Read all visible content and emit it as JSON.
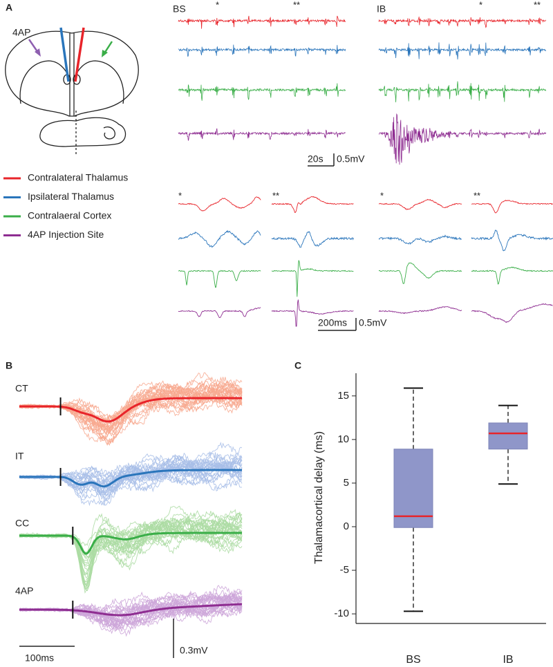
{
  "panel_a": {
    "label": "A",
    "drug": "4AP",
    "groups": [
      "BS",
      "IB"
    ],
    "markers": [
      "*",
      "**"
    ],
    "legend": [
      {
        "name": "Contralateral Thalamus",
        "color": "#e8242a"
      },
      {
        "name": "Ipsilateral Thalamus",
        "color": "#2a75bb"
      },
      {
        "name": "Contralaeral Cortex",
        "color": "#3aae48"
      },
      {
        "name": "4AP Injection Site",
        "color": "#8e2d91"
      }
    ],
    "scalebars": [
      {
        "time": "20s",
        "amplitude": "0.5mV"
      },
      {
        "time": "200ms",
        "amplitude": "0.5mV"
      }
    ]
  },
  "panel_b": {
    "label": "B",
    "traces": [
      {
        "name": "CT",
        "color": "#e8242a",
        "light": "#f7a98f"
      },
      {
        "name": "IT",
        "color": "#2a75bb",
        "light": "#a9bfe8"
      },
      {
        "name": "CC",
        "color": "#3aae48",
        "light": "#acdba3"
      },
      {
        "name": "4AP",
        "color": "#8e2d91",
        "light": "#cda6d9"
      }
    ],
    "scalebar_time": "100ms",
    "scalebar_amplitude": "0.3mV"
  },
  "chart_data": {
    "type": "box",
    "label": "C",
    "ylabel": "Thalamacortical delay (ms)",
    "categories": [
      "BS",
      "IB"
    ],
    "boxes": [
      {
        "whislo": -9.7,
        "q1": -0.1,
        "med": 1.2,
        "q3": 8.9,
        "whishi": 15.9
      },
      {
        "whislo": 4.9,
        "q1": 8.9,
        "med": 10.7,
        "q3": 11.9,
        "whishi": 13.9
      }
    ],
    "box_color": "#8f96c9",
    "median_color": "#e8242a",
    "ylim": [
      -11.1,
      17.6
    ],
    "yticks": [
      -10,
      -5,
      0,
      5,
      10,
      15
    ]
  }
}
